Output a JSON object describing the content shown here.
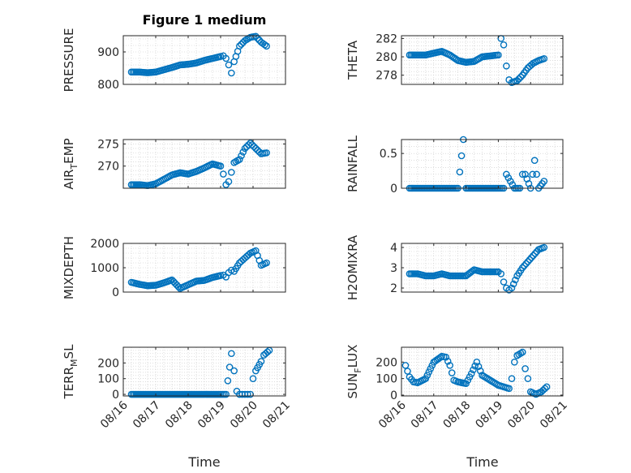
{
  "figure": {
    "title": "Figure 1 medium"
  },
  "colors": {
    "marker": "#0072BD",
    "axis": "#262626",
    "grid": "#c8c8c8"
  },
  "chart_data": [
    {
      "type": "scatter",
      "ylabel": "PRESSURE",
      "ylim": [
        800,
        950
      ],
      "yticks": [
        800,
        900
      ],
      "ytick_labels": [
        "800",
        "900"
      ],
      "x": [
        "08/16 06:00",
        "08/16 12:00",
        "08/16 18:00",
        "08/17 00:00",
        "08/17 06:00",
        "08/17 12:00",
        "08/17 18:00",
        "08/18 00:00",
        "08/18 06:00",
        "08/18 12:00",
        "08/18 18:00",
        "08/19 00:00",
        "08/19 02:00",
        "08/19 04:00",
        "08/19 06:00",
        "08/19 08:00",
        "08/19 10:00",
        "08/19 14:00",
        "08/19 18:00",
        "08/19 22:00",
        "08/20 02:00",
        "08/20 06:00",
        "08/20 10:00"
      ],
      "y": [
        838,
        838,
        836,
        838,
        845,
        852,
        860,
        862,
        866,
        874,
        880,
        886,
        888,
        880,
        860,
        835,
        870,
        918,
        935,
        945,
        948,
        930,
        918
      ]
    },
    {
      "type": "scatter",
      "ylabel": "THETA",
      "ylim": [
        277,
        282.3
      ],
      "yticks": [
        278,
        280,
        282
      ],
      "ytick_labels": [
        "278",
        "280",
        "282"
      ],
      "x": [
        "08/16 06:00",
        "08/16 12:00",
        "08/16 18:00",
        "08/17 00:00",
        "08/17 06:00",
        "08/17 12:00",
        "08/17 18:00",
        "08/18 00:00",
        "08/18 06:00",
        "08/18 12:00",
        "08/18 18:00",
        "08/19 00:00",
        "08/19 02:00",
        "08/19 04:00",
        "08/19 06:00",
        "08/19 08:00",
        "08/19 10:00",
        "08/19 14:00",
        "08/19 18:00",
        "08/19 22:00",
        "08/20 02:00",
        "08/20 06:00",
        "08/20 10:00"
      ],
      "y": [
        280.2,
        280.2,
        280.2,
        280.4,
        280.6,
        280.2,
        279.6,
        279.4,
        279.5,
        280.0,
        280.1,
        280.2,
        282.0,
        281.3,
        279.0,
        277.5,
        277.2,
        277.4,
        278.0,
        278.8,
        279.3,
        279.6,
        279.8
      ]
    },
    {
      "type": "scatter",
      "ylabel": "AIR_TEMP",
      "ylim": [
        265,
        276
      ],
      "yticks": [
        270,
        275
      ],
      "ytick_labels": [
        "270",
        "275"
      ],
      "x": [
        "08/16 06:00",
        "08/16 12:00",
        "08/16 18:00",
        "08/17 00:00",
        "08/17 06:00",
        "08/17 12:00",
        "08/17 18:00",
        "08/18 00:00",
        "08/18 06:00",
        "08/18 12:00",
        "08/18 18:00",
        "08/19 00:00",
        "08/19 02:00",
        "08/19 04:00",
        "08/19 06:00",
        "08/19 08:00",
        "08/19 10:00",
        "08/19 14:00",
        "08/19 18:00",
        "08/19 22:00",
        "08/20 02:00",
        "08/20 06:00",
        "08/20 10:00"
      ],
      "y": [
        265.8,
        265.8,
        265.6,
        266.0,
        267.0,
        268.0,
        268.5,
        268.2,
        268.8,
        269.6,
        270.5,
        270.0,
        268.2,
        265.8,
        266.5,
        268.6,
        270.8,
        271.5,
        274.0,
        275.2,
        274.0,
        272.8,
        273.0
      ]
    },
    {
      "type": "scatter",
      "ylabel": "RAINFALL",
      "ylim": [
        0,
        0.7
      ],
      "yticks": [
        0,
        0.5
      ],
      "ytick_labels": [
        "0",
        "0.5"
      ],
      "x": [
        "08/16 06:00",
        "08/16 12:00",
        "08/16 18:00",
        "08/17 00:00",
        "08/17 06:00",
        "08/17 12:00",
        "08/17 18:00",
        "08/17 22:00",
        "08/18 00:00",
        "08/18 06:00",
        "08/18 12:00",
        "08/18 18:00",
        "08/19 00:00",
        "08/19 04:00",
        "08/19 06:00",
        "08/19 09:00",
        "08/19 12:00",
        "08/19 16:00",
        "08/19 18:00",
        "08/19 20:00",
        "08/20 00:00",
        "08/20 03:00",
        "08/20 06:00",
        "08/20 10:00"
      ],
      "y": [
        0,
        0,
        0,
        0,
        0,
        0,
        0,
        0.7,
        0,
        0,
        0,
        0,
        0,
        0,
        0.2,
        0.1,
        0,
        0,
        0.2,
        0.2,
        0,
        0.4,
        0,
        0.1
      ]
    },
    {
      "type": "scatter",
      "ylabel": "MIXDEPTH",
      "ylim": [
        0,
        2000
      ],
      "yticks": [
        0,
        1000,
        2000
      ],
      "ytick_labels": [
        "0",
        "1000",
        "2000"
      ],
      "x": [
        "08/16 06:00",
        "08/16 12:00",
        "08/16 18:00",
        "08/17 00:00",
        "08/17 06:00",
        "08/17 12:00",
        "08/17 18:00",
        "08/18 00:00",
        "08/18 06:00",
        "08/18 12:00",
        "08/18 18:00",
        "08/19 00:00",
        "08/19 02:00",
        "08/19 04:00",
        "08/19 06:00",
        "08/19 08:00",
        "08/19 10:00",
        "08/19 14:00",
        "08/19 18:00",
        "08/19 22:00",
        "08/20 02:00",
        "08/20 06:00",
        "08/20 10:00"
      ],
      "y": [
        400,
        320,
        260,
        280,
        380,
        500,
        150,
        300,
        450,
        480,
        600,
        680,
        700,
        620,
        800,
        900,
        850,
        1200,
        1400,
        1600,
        1700,
        1100,
        1200
      ]
    },
    {
      "type": "scatter",
      "ylabel": "H2OMIXRA",
      "ylim": [
        1.8,
        4.2
      ],
      "yticks": [
        2,
        3,
        4
      ],
      "ytick_labels": [
        "2",
        "3",
        "4"
      ],
      "x": [
        "08/16 06:00",
        "08/16 12:00",
        "08/16 18:00",
        "08/17 00:00",
        "08/17 06:00",
        "08/17 12:00",
        "08/17 18:00",
        "08/18 00:00",
        "08/18 06:00",
        "08/18 12:00",
        "08/18 18:00",
        "08/19 00:00",
        "08/19 02:00",
        "08/19 04:00",
        "08/19 06:00",
        "08/19 08:00",
        "08/19 10:00",
        "08/19 14:00",
        "08/19 18:00",
        "08/19 22:00",
        "08/20 02:00",
        "08/20 06:00",
        "08/20 10:00"
      ],
      "y": [
        2.7,
        2.7,
        2.6,
        2.6,
        2.7,
        2.6,
        2.6,
        2.6,
        2.9,
        2.8,
        2.8,
        2.8,
        2.7,
        2.3,
        2.0,
        1.9,
        2.0,
        2.6,
        3.0,
        3.3,
        3.6,
        3.9,
        4.0
      ]
    },
    {
      "type": "scatter",
      "ylabel": "TERR_MSL",
      "ylim": [
        -10,
        300
      ],
      "yticks": [
        0,
        100,
        200
      ],
      "ytick_labels": [
        "0",
        "100",
        "200"
      ],
      "x": [
        "08/16 06:00",
        "08/16 12:00",
        "08/16 18:00",
        "08/17 00:00",
        "08/17 06:00",
        "08/17 12:00",
        "08/17 18:00",
        "08/18 00:00",
        "08/18 06:00",
        "08/18 12:00",
        "08/18 18:00",
        "08/19 00:00",
        "08/19 04:00",
        "08/19 08:00",
        "08/19 10:00",
        "08/19 12:00",
        "08/19 14:00",
        "08/19 16:00",
        "08/19 18:00",
        "08/19 20:00",
        "08/19 22:00",
        "08/20 00:00",
        "08/20 02:00",
        "08/20 06:00",
        "08/20 08:00",
        "08/20 12:00"
      ],
      "y": [
        0,
        0,
        0,
        0,
        0,
        0,
        0,
        0,
        0,
        0,
        0,
        0,
        0,
        260,
        150,
        20,
        0,
        0,
        0,
        0,
        0,
        100,
        150,
        210,
        250,
        280
      ]
    },
    {
      "type": "scatter",
      "ylabel": "SUN_FLUX",
      "ylim": [
        -5,
        290
      ],
      "yticks": [
        0,
        100,
        200
      ],
      "ytick_labels": [
        "0",
        "100",
        "200"
      ],
      "x": [
        "08/16 03:00",
        "08/16 06:00",
        "08/16 09:00",
        "08/16 12:00",
        "08/16 18:00",
        "08/17 00:00",
        "08/17 06:00",
        "08/17 09:00",
        "08/17 12:00",
        "08/17 15:00",
        "08/17 18:00",
        "08/18 00:00",
        "08/18 04:00",
        "08/18 08:00",
        "08/18 12:00",
        "08/18 18:00",
        "08/19 00:00",
        "08/19 04:00",
        "08/19 08:00",
        "08/19 10:00",
        "08/19 12:00",
        "08/19 14:00",
        "08/19 18:00",
        "08/19 20:00",
        "08/19 22:00",
        "08/20 00:00",
        "08/20 04:00",
        "08/20 08:00",
        "08/20 12:00"
      ],
      "y": [
        180,
        110,
        80,
        75,
        100,
        200,
        235,
        230,
        180,
        90,
        80,
        70,
        130,
        200,
        120,
        90,
        60,
        50,
        40,
        100,
        200,
        240,
        260,
        160,
        100,
        20,
        5,
        20,
        50
      ]
    }
  ],
  "x_axis": {
    "tick_labels": [
      "08/16",
      "08/17",
      "08/18",
      "08/19",
      "08/20",
      "08/21"
    ],
    "range": [
      "08/16 00:00",
      "08/21 00:00"
    ],
    "label": "Time"
  }
}
